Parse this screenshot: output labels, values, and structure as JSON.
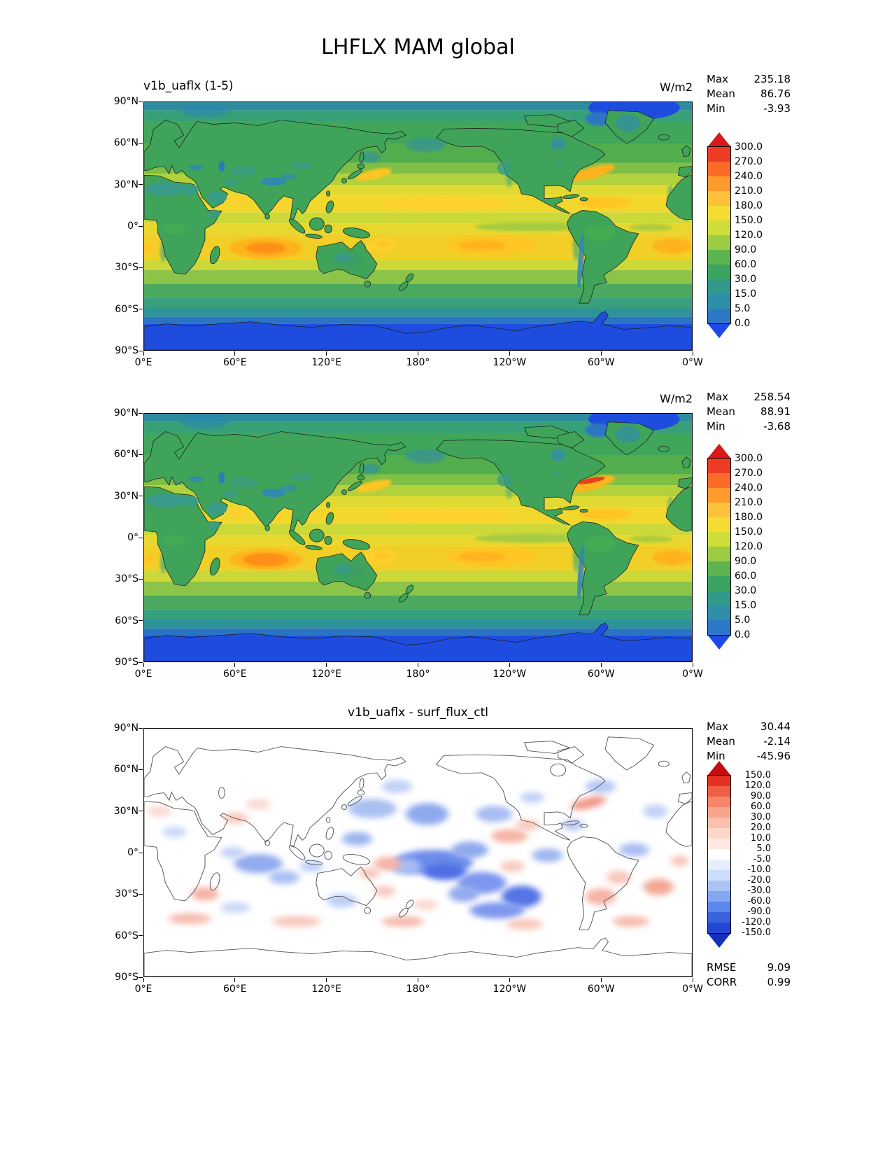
{
  "title": "LHFLX MAM global",
  "axes": {
    "lat_ticks": [
      "90°N",
      "60°N",
      "30°N",
      "0°",
      "30°S",
      "60°S",
      "90°S"
    ],
    "lon_ticks": [
      "0°E",
      "60°E",
      "120°E",
      "180°",
      "120°W",
      "60°W",
      "0°W"
    ]
  },
  "panels": [
    {
      "title": "v1b_uaflx (1-5)",
      "units": "W/m2",
      "stats": [
        {
          "label": "Max",
          "value": "235.18"
        },
        {
          "label": "Mean",
          "value": "86.76"
        },
        {
          "label": "Min",
          "value": "-3.93"
        }
      ],
      "colorbar": {
        "ticks": [
          "300.0",
          "270.0",
          "240.0",
          "210.0",
          "180.0",
          "150.0",
          "120.0",
          "90.0",
          "60.0",
          "30.0",
          "15.0",
          "5.0",
          "0.0"
        ],
        "colors": [
          "#ee3b24",
          "#fb6b27",
          "#fd9b2c",
          "#fdc23a",
          "#f5dc32",
          "#cede39",
          "#9ccb44",
          "#5cb350",
          "#3ba463",
          "#319a8b",
          "#2f8fa8",
          "#2e78c8"
        ],
        "arrow_top": "#d7191c",
        "arrow_bottom": "#1d49e8"
      }
    },
    {
      "title": "",
      "units": "W/m2",
      "stats": [
        {
          "label": "Max",
          "value": "258.54"
        },
        {
          "label": "Mean",
          "value": "88.91"
        },
        {
          "label": "Min",
          "value": "-3.68"
        }
      ],
      "colorbar": {
        "ticks": [
          "300.0",
          "270.0",
          "240.0",
          "210.0",
          "180.0",
          "150.0",
          "120.0",
          "90.0",
          "60.0",
          "30.0",
          "15.0",
          "5.0",
          "0.0"
        ],
        "colors": [
          "#ee3b24",
          "#fb6b27",
          "#fd9b2c",
          "#fdc23a",
          "#f5dc32",
          "#cede39",
          "#9ccb44",
          "#5cb350",
          "#3ba463",
          "#319a8b",
          "#2f8fa8",
          "#2e78c8"
        ],
        "arrow_top": "#d7191c",
        "arrow_bottom": "#1d49e8"
      }
    },
    {
      "title": "v1b_uaflx - surf_flux_ctl",
      "units": "",
      "stats": [
        {
          "label": "Max",
          "value": "30.44"
        },
        {
          "label": "Mean",
          "value": "-2.14"
        },
        {
          "label": "Min",
          "value": "-45.96"
        }
      ],
      "colorbar": {
        "ticks": [
          "150.0",
          "120.0",
          "90.0",
          "60.0",
          "30.0",
          "20.0",
          "10.0",
          "5.0",
          "-5.0",
          "-10.0",
          "-20.0",
          "-30.0",
          "-60.0",
          "-90.0",
          "-120.0",
          "-150.0"
        ],
        "colors": [
          "#e23222",
          "#ef5f45",
          "#f68569",
          "#f9a58e",
          "#fbbfae",
          "#fdd5c9",
          "#fee8e1",
          "#ffffff",
          "#e6edfc",
          "#ccdcfa",
          "#aac4f6",
          "#84a7f1",
          "#5c86ea",
          "#3a63e0",
          "#2247d4"
        ],
        "arrow_top": "#c40d0d",
        "arrow_bottom": "#1430b8"
      },
      "metrics": [
        {
          "label": "RMSE",
          "value": "9.09"
        },
        {
          "label": "CORR",
          "value": "0.99"
        }
      ]
    }
  ],
  "chart_data": {
    "type": "heatmap",
    "title": "LHFLX MAM global",
    "variable": "LHFLX",
    "season": "MAM",
    "region": "global",
    "units": "W/m2",
    "projection": "lat-lon, Pacific-centered (0°E to 0°W)",
    "x_ticks": [
      "0°E",
      "60°E",
      "120°E",
      "180°",
      "120°W",
      "60°W",
      "0°W"
    ],
    "y_ticks": [
      "90°N",
      "60°N",
      "30°N",
      "0°",
      "30°S",
      "60°S",
      "90°S"
    ],
    "x_range_deg_east": [
      0,
      360
    ],
    "y_range_deg_lat": [
      -90,
      90
    ],
    "panels": [
      {
        "name": "v1b_uaflx (1-5)",
        "max": 235.18,
        "mean": 86.76,
        "min": -3.93,
        "contour_levels": [
          0.0,
          5.0,
          15.0,
          30.0,
          60.0,
          90.0,
          120.0,
          150.0,
          180.0,
          210.0,
          240.0,
          270.0,
          300.0
        ]
      },
      {
        "name": "",
        "max": 258.54,
        "mean": 88.91,
        "min": -3.68,
        "contour_levels": [
          0.0,
          5.0,
          15.0,
          30.0,
          60.0,
          90.0,
          120.0,
          150.0,
          180.0,
          210.0,
          240.0,
          270.0,
          300.0
        ]
      },
      {
        "name": "v1b_uaflx - surf_flux_ctl",
        "max": 30.44,
        "mean": -2.14,
        "min": -45.96,
        "rmse": 9.09,
        "corr": 0.99,
        "contour_levels": [
          -150.0,
          -120.0,
          -90.0,
          -60.0,
          -30.0,
          -20.0,
          -10.0,
          -5.0,
          5.0,
          10.0,
          20.0,
          30.0,
          60.0,
          90.0,
          120.0,
          150.0
        ]
      }
    ]
  }
}
